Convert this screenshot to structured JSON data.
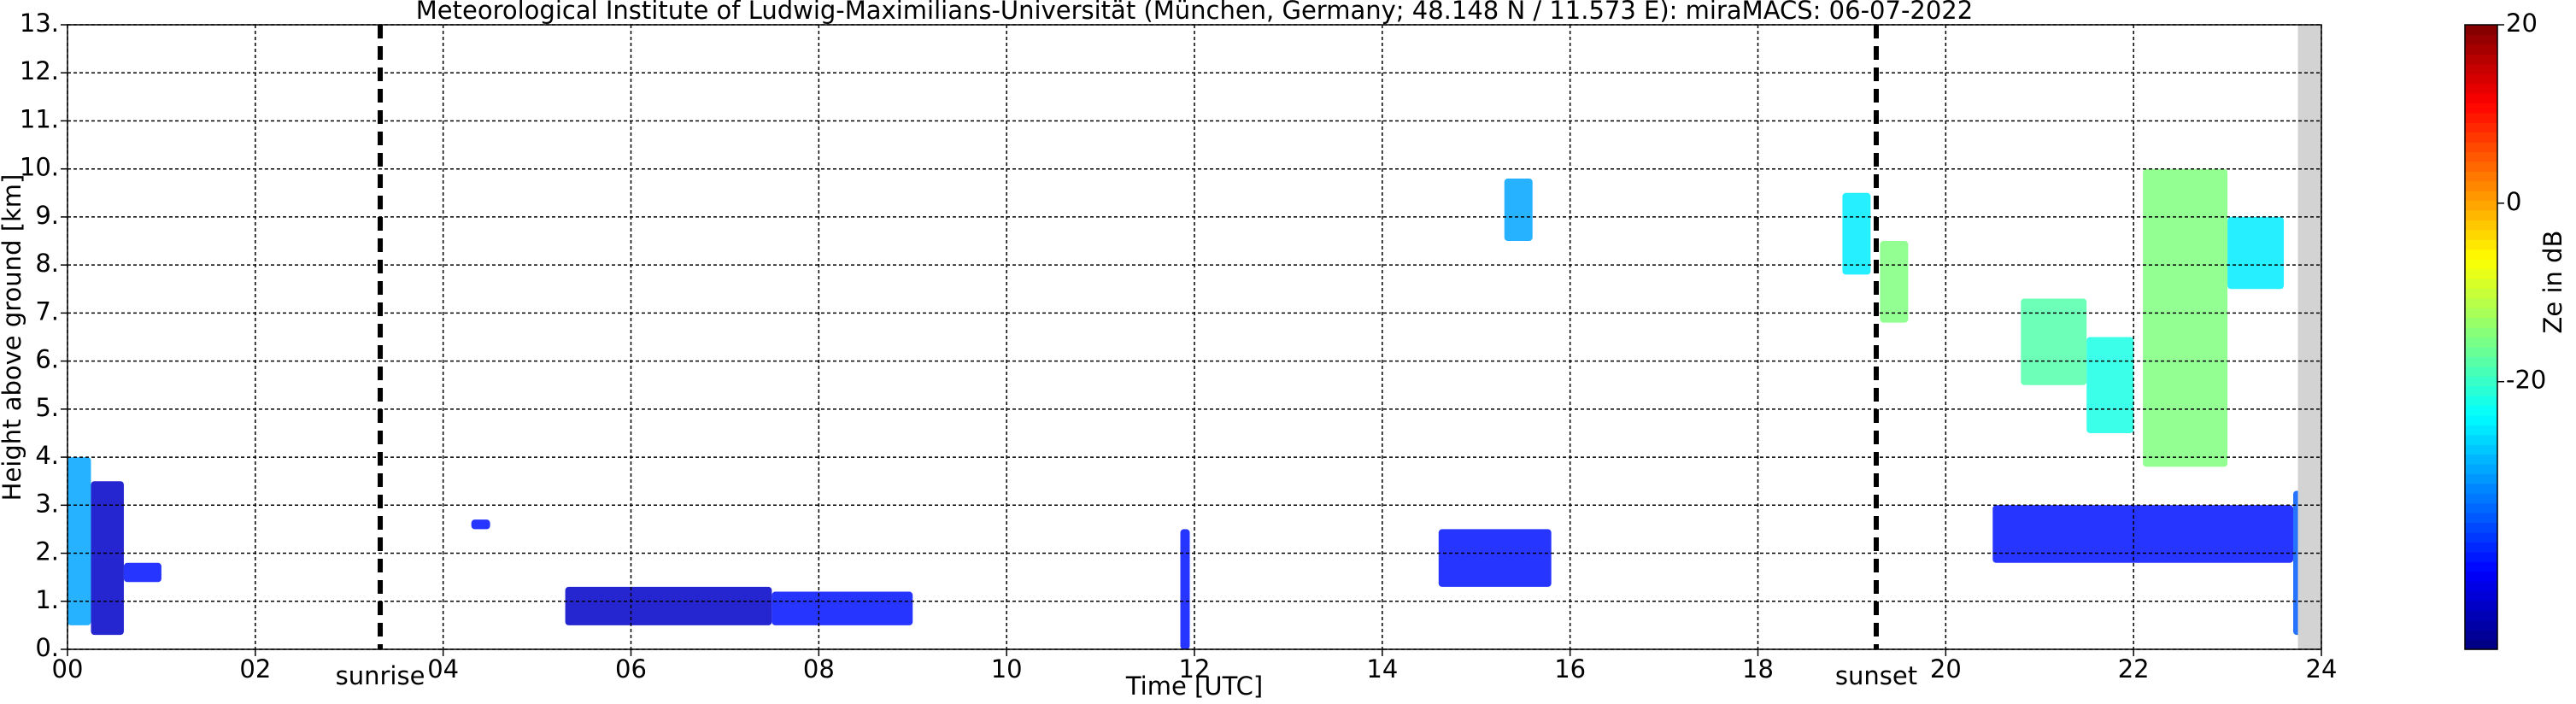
{
  "chart_data": {
    "type": "radar-heatmap",
    "title": "Meteorological Institute of Ludwig-Maximilians-Universität (München, Germany; 48.148 N / 11.573 E):    miraMACS: 06-07-2022",
    "x_label": "Time [UTC]",
    "y_label": "Height above ground [km]",
    "colorbar_label": "Ze in dB",
    "xlim": [
      0,
      24
    ],
    "xticks": [
      {
        "value": 0,
        "label": "00"
      },
      {
        "value": 2,
        "label": "02"
      },
      {
        "value": 4,
        "label": "04"
      },
      {
        "value": 6,
        "label": "06"
      },
      {
        "value": 8,
        "label": "08"
      },
      {
        "value": 10,
        "label": "10"
      },
      {
        "value": 12,
        "label": "12"
      },
      {
        "value": 14,
        "label": "14"
      },
      {
        "value": 16,
        "label": "16"
      },
      {
        "value": 18,
        "label": "18"
      },
      {
        "value": 20,
        "label": "20"
      },
      {
        "value": 22,
        "label": "22"
      },
      {
        "value": 24,
        "label": "24"
      }
    ],
    "ylim": [
      0,
      13
    ],
    "yticks": [
      {
        "value": 0,
        "label": "0."
      },
      {
        "value": 1,
        "label": "1."
      },
      {
        "value": 2,
        "label": "2."
      },
      {
        "value": 3,
        "label": "3."
      },
      {
        "value": 4,
        "label": "4."
      },
      {
        "value": 5,
        "label": "5."
      },
      {
        "value": 6,
        "label": "6."
      },
      {
        "value": 7,
        "label": "7."
      },
      {
        "value": 8,
        "label": "8."
      },
      {
        "value": 9,
        "label": "9."
      },
      {
        "value": 10,
        "label": "10."
      },
      {
        "value": 11,
        "label": "11."
      },
      {
        "value": 12,
        "label": "12."
      },
      {
        "value": 13,
        "label": "13."
      }
    ],
    "clim": [
      -50,
      20
    ],
    "cticks": [
      20,
      0,
      -20
    ],
    "colormap": "jet",
    "grid": true,
    "events": [
      {
        "label": "sunrise",
        "x": 3.33
      },
      {
        "label": "sunset",
        "x": 19.26
      }
    ],
    "missing_x": [
      23.75,
      24
    ],
    "echoes": [
      {
        "x": [
          0.0,
          0.25
        ],
        "y": [
          0.5,
          4.0
        ],
        "value": -30
      },
      {
        "x": [
          0.25,
          0.6
        ],
        "y": [
          0.3,
          3.5
        ],
        "value": -45
      },
      {
        "x": [
          0.6,
          1.0
        ],
        "y": [
          1.4,
          1.8
        ],
        "value": -40
      },
      {
        "x": [
          4.3,
          4.5
        ],
        "y": [
          2.5,
          2.7
        ],
        "value": -40
      },
      {
        "x": [
          5.3,
          7.5
        ],
        "y": [
          0.5,
          1.3
        ],
        "value": -45
      },
      {
        "x": [
          7.5,
          9.0
        ],
        "y": [
          0.5,
          1.2
        ],
        "value": -40
      },
      {
        "x": [
          11.85,
          11.95
        ],
        "y": [
          0.0,
          2.5
        ],
        "value": -40
      },
      {
        "x": [
          14.6,
          15.8
        ],
        "y": [
          1.3,
          2.5
        ],
        "value": -40
      },
      {
        "x": [
          15.3,
          15.6
        ],
        "y": [
          8.5,
          9.8
        ],
        "value": -30
      },
      {
        "x": [
          18.9,
          19.2
        ],
        "y": [
          7.8,
          9.5
        ],
        "value": -25
      },
      {
        "x": [
          19.3,
          19.6
        ],
        "y": [
          6.8,
          8.5
        ],
        "value": -15
      },
      {
        "x": [
          20.8,
          21.5
        ],
        "y": [
          5.5,
          7.3
        ],
        "value": -18
      },
      {
        "x": [
          21.5,
          22.0
        ],
        "y": [
          4.5,
          6.5
        ],
        "value": -22
      },
      {
        "x": [
          22.1,
          23.0
        ],
        "y": [
          3.8,
          10.0
        ],
        "value": -15
      },
      {
        "x": [
          23.0,
          23.6
        ],
        "y": [
          7.5,
          9.0
        ],
        "value": -25
      },
      {
        "x": [
          20.5,
          23.7
        ],
        "y": [
          1.8,
          3.0
        ],
        "value": -40
      },
      {
        "x": [
          23.7,
          23.8
        ],
        "y": [
          0.3,
          3.3
        ],
        "value": -35
      }
    ]
  }
}
